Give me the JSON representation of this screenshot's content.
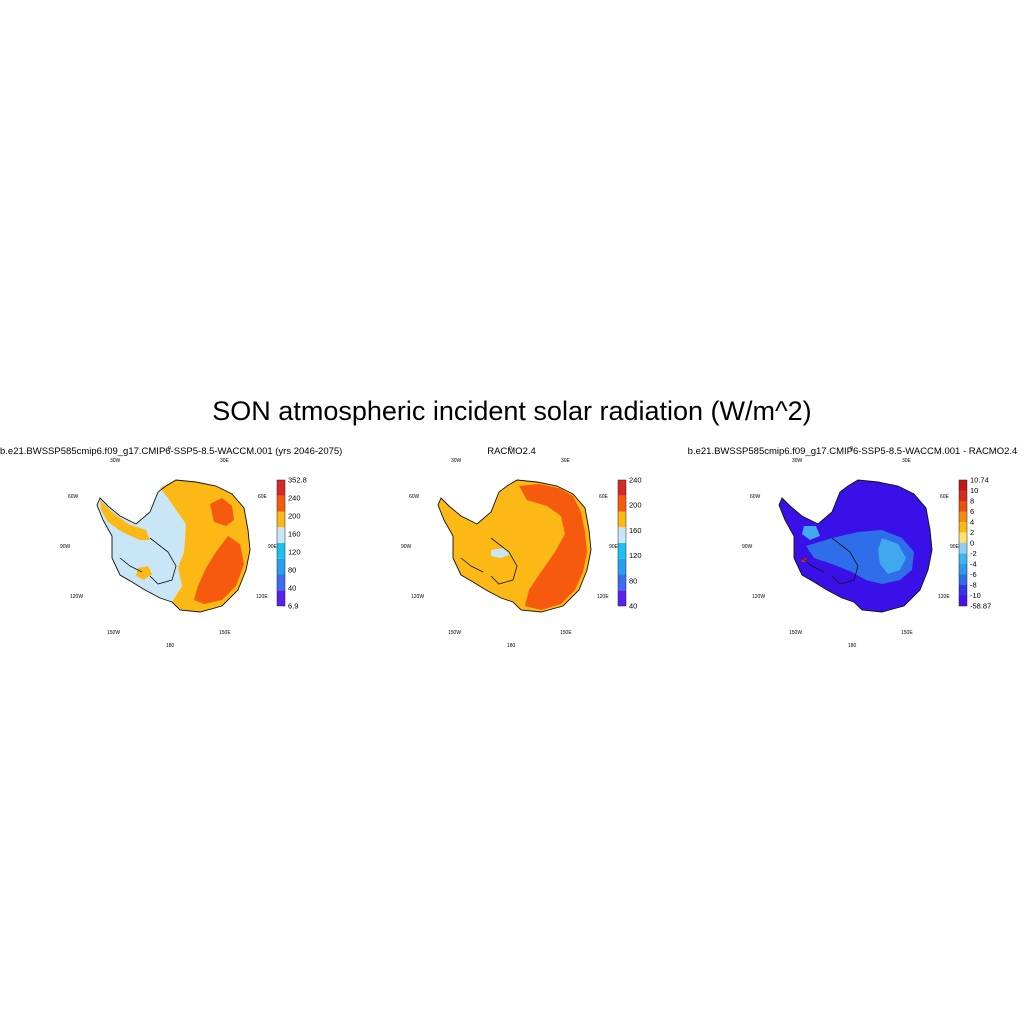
{
  "title": "SON atmospheric incident solar radiation (W/m^2)",
  "panels": [
    {
      "title": "b.e21.BWSSP585cmip6.f09_g17.CMIP6-SSP5-8.5-WACCM.001 (yrs 2046-2075)",
      "colorbar": {
        "colors": [
          "#5a20f0",
          "#3a6df0",
          "#28a0f0",
          "#1ec0f0",
          "#c8e6f5",
          "#fcb815",
          "#f65a0f",
          "#d42a26"
        ],
        "labels": [
          "6.9",
          "40",
          "80",
          "120",
          "160",
          "200",
          "240",
          "352.8"
        ]
      }
    },
    {
      "title": "RACMO2.4",
      "colorbar": {
        "colors": [
          "#5a20f0",
          "#3a6df0",
          "#28a0f0",
          "#1ec0f0",
          "#c8e6f5",
          "#fcb815",
          "#f65a0f",
          "#d42a26"
        ],
        "labels": [
          "40",
          "80",
          "120",
          "160",
          "200",
          "240"
        ]
      }
    },
    {
      "title": "b.e21.BWSSP585cmip6.f09_g17.CMIP6-SSP5-8.5-WACCM.001 - RACMO2.4",
      "colorbar": {
        "colors": [
          "#4a10e8",
          "#3535e8",
          "#2c6ee8",
          "#2e9ae8",
          "#40b4ee",
          "#8fd0f2",
          "#fbe070",
          "#fbb81a",
          "#f48a10",
          "#e8500e",
          "#d82a1a",
          "#c01818"
        ],
        "labels": [
          "-58.87",
          "-10",
          "-8",
          "-6",
          "-4",
          "-2",
          "0",
          "2",
          "4",
          "6",
          "8",
          "10",
          "10.74"
        ]
      }
    }
  ],
  "map_labels": [
    "30W",
    "30E",
    "60W",
    "60E",
    "90W",
    "90E",
    "120W",
    "120E",
    "150W",
    "150E",
    "180",
    "0"
  ],
  "colors": {
    "ice_light": "#c8e6f5",
    "ice_orange": "#fcb815",
    "ice_red": "#f65a0f",
    "diff_blue": "#3a10e8",
    "diff_mid": "#2e6ee8",
    "diff_light": "#40a8ec"
  }
}
